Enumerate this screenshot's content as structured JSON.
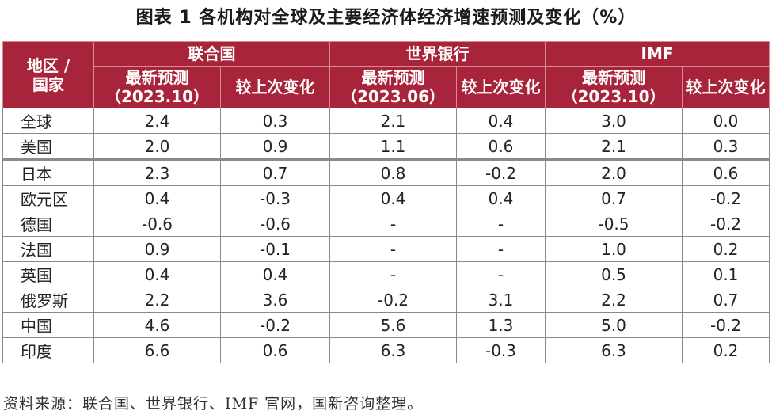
{
  "title": "图表 1 各机构对全球及主要经济体经济增速预测及变化（%）",
  "source": "资料来源：联合国、世界银行、IMF 官网，国新咨询整理。",
  "header": {
    "region": "地区 / 国家",
    "orgs": [
      "联合国",
      "世界银行",
      "IMF"
    ],
    "sub": [
      "最新预测（2023.10）",
      "较上次变化",
      "最新预测（2023.06）",
      "较上次变化",
      "最新预测（2023.10）",
      "较上次变化"
    ]
  },
  "chart_data": {
    "type": "table",
    "columns": [
      "联合国 最新预测（2023.10）",
      "联合国 较上次变化",
      "世界银行 最新预测（2023.06）",
      "世界银行 较上次变化",
      "IMF 最新预测（2023.10）",
      "IMF 较上次变化"
    ],
    "rows": [
      {
        "name": "全球",
        "values": [
          "2.4",
          "0.3",
          "2.1",
          "0.4",
          "3.0",
          "0.0"
        ]
      },
      {
        "name": "美国",
        "values": [
          "2.0",
          "0.9",
          "1.1",
          "0.6",
          "2.1",
          "0.3"
        ]
      },
      {
        "name": "日本",
        "values": [
          "2.3",
          "0.7",
          "0.8",
          "-0.2",
          "2.0",
          "0.6"
        ]
      },
      {
        "name": "欧元区",
        "values": [
          "0.4",
          "-0.3",
          "0.4",
          "0.4",
          "0.7",
          "-0.2"
        ]
      },
      {
        "name": "德国",
        "values": [
          "-0.6",
          "-0.6",
          "-",
          "-",
          "-0.5",
          "-0.2"
        ]
      },
      {
        "name": "法国",
        "values": [
          "0.9",
          "-0.1",
          "-",
          "-",
          "1.0",
          "0.2"
        ]
      },
      {
        "name": "英国",
        "values": [
          "0.4",
          "0.4",
          "-",
          "-",
          "0.5",
          "0.1"
        ]
      },
      {
        "name": "俄罗斯",
        "values": [
          "2.2",
          "3.6",
          "-0.2",
          "3.1",
          "2.2",
          "0.7"
        ]
      },
      {
        "name": "中国",
        "values": [
          "4.6",
          "-0.2",
          "5.6",
          "1.3",
          "5.0",
          "-0.2"
        ]
      },
      {
        "name": "印度",
        "values": [
          "6.6",
          "0.6",
          "6.3",
          "-0.3",
          "6.3",
          "0.2"
        ]
      }
    ]
  }
}
